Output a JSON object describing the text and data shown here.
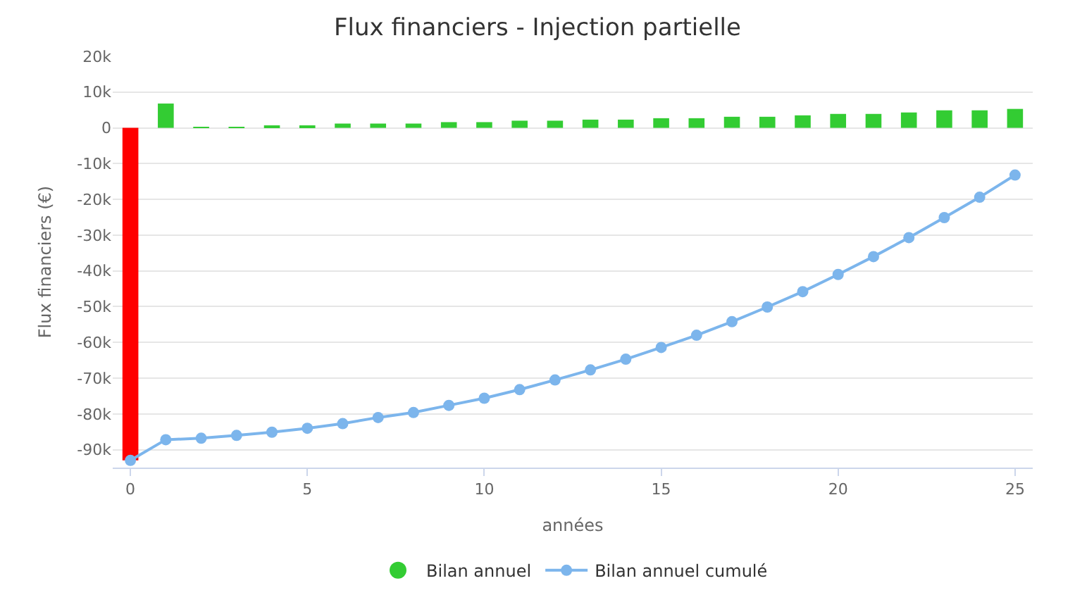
{
  "chart_data": {
    "type": "bar",
    "title": "Flux financiers - Injection partielle",
    "xlabel": "années",
    "ylabel": "Flux financiers (€)",
    "x": [
      0,
      1,
      2,
      3,
      4,
      5,
      6,
      7,
      8,
      9,
      10,
      11,
      12,
      13,
      14,
      15,
      16,
      17,
      18,
      19,
      20,
      21,
      22,
      23,
      24,
      25
    ],
    "xlim": [
      -0.5,
      25.5
    ],
    "xticks": [
      0,
      5,
      10,
      15,
      20,
      25
    ],
    "ylim": [
      -95000,
      20000
    ],
    "yticks": [
      {
        "value": -90000,
        "label": "-90k"
      },
      {
        "value": -80000,
        "label": "-80k"
      },
      {
        "value": -70000,
        "label": "-70k"
      },
      {
        "value": -60000,
        "label": "-60k"
      },
      {
        "value": -50000,
        "label": "-50k"
      },
      {
        "value": -40000,
        "label": "-40k"
      },
      {
        "value": -30000,
        "label": "-30k"
      },
      {
        "value": -20000,
        "label": "-20k"
      },
      {
        "value": -10000,
        "label": "-10k"
      },
      0,
      {
        "value": 10000,
        "label": "10k"
      },
      {
        "value": 20000,
        "label": "20k"
      }
    ],
    "grid": "y",
    "legend": "bottom",
    "series": [
      {
        "name": "Bilan annuel",
        "color": "#33cc33",
        "colors": [
          "#ff0000",
          "#33cc33",
          "#33cc33",
          "#33cc33",
          "#33cc33",
          "#33cc33",
          "#33cc33",
          "#33cc33",
          "#33cc33",
          "#33cc33",
          "#33cc33",
          "#33cc33",
          "#33cc33",
          "#33cc33",
          "#33cc33",
          "#33cc33",
          "#33cc33",
          "#33cc33",
          "#33cc33",
          "#33cc33",
          "#33cc33",
          "#33cc33",
          "#33cc33",
          "#33cc33",
          "#33cc33",
          "#33cc33"
        ],
        "values": [
          -93000,
          6800,
          300,
          300,
          700,
          700,
          1200,
          1200,
          1200,
          1600,
          1600,
          2000,
          2000,
          2300,
          2300,
          2700,
          2700,
          3100,
          3100,
          3500,
          3900,
          3900,
          4300,
          4900,
          4900,
          5300
        ]
      },
      {
        "name": "Bilan annuel cumulé",
        "type": "line",
        "color": "#7cb5ec",
        "marker": "circle",
        "values": [
          -93000,
          -87200,
          -86800,
          -86000,
          -85100,
          -84000,
          -82700,
          -81000,
          -79600,
          -77600,
          -75600,
          -73200,
          -70500,
          -67700,
          -64700,
          -61400,
          -58000,
          -54200,
          -50100,
          -45800,
          -41000,
          -36000,
          -30700,
          -25100,
          -19400,
          -13200
        ]
      }
    ]
  }
}
